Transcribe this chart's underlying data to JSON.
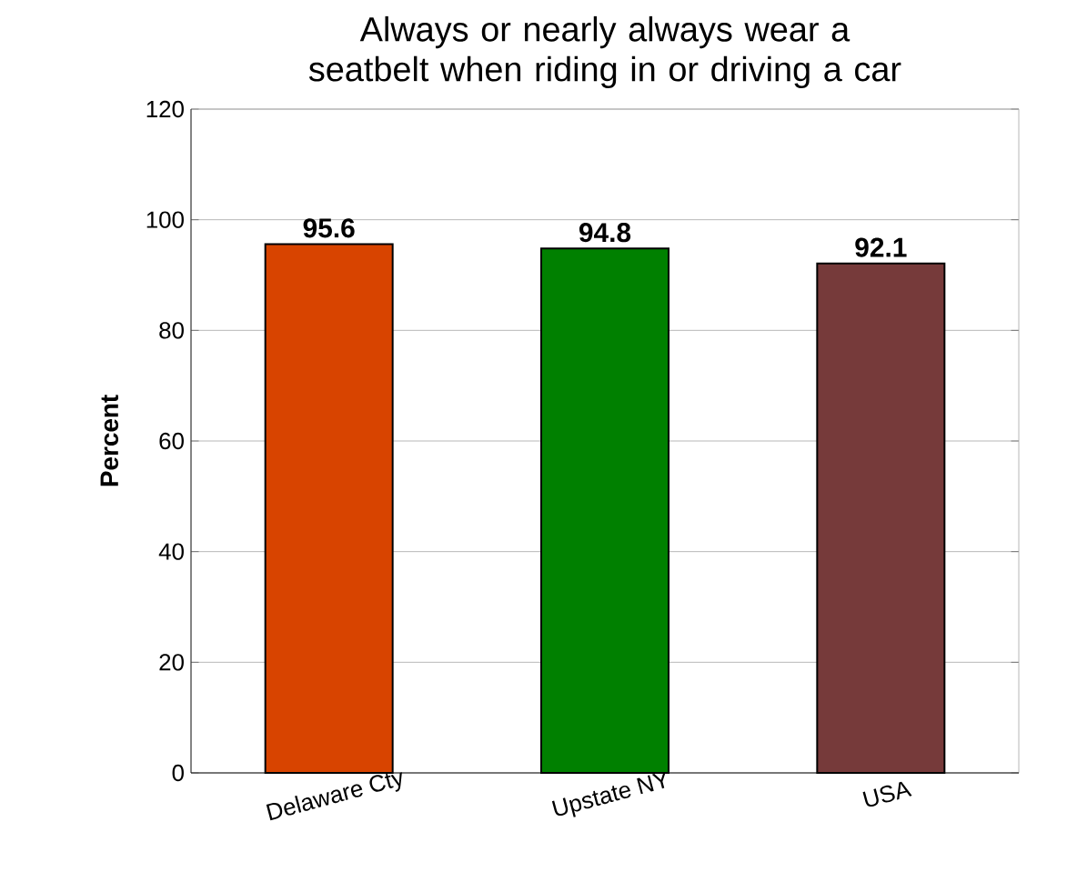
{
  "chart_data": {
    "type": "bar",
    "title": "Always or nearly always wear a seatbelt when riding in or driving a car",
    "ylabel": "Percent",
    "categories": [
      "Delaware Cty",
      "Upstate NY",
      "USA"
    ],
    "values": [
      95.6,
      94.8,
      92.1
    ],
    "colors": [
      "#d84400",
      "#008000",
      "#763a3a"
    ],
    "ylim": [
      0,
      120
    ],
    "yticks": [
      0,
      20,
      40,
      60,
      80,
      100,
      120
    ],
    "grid": "y",
    "data_labels": true
  }
}
